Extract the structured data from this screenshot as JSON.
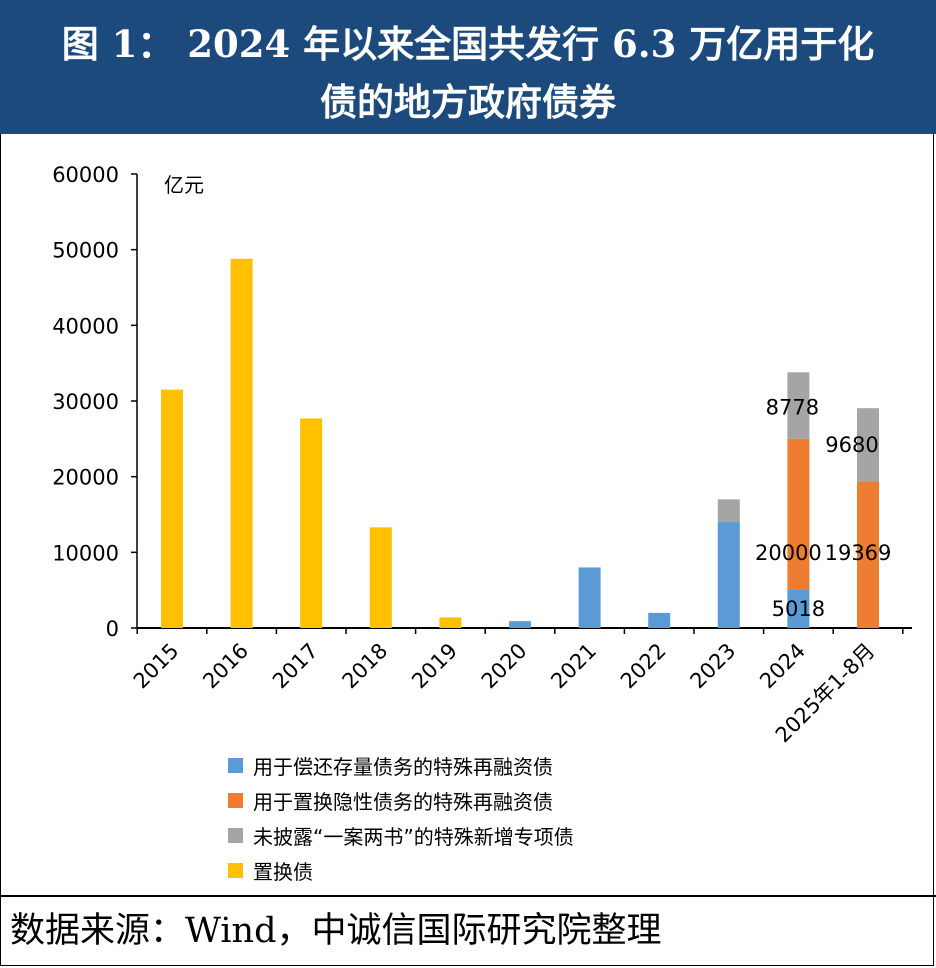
{
  "header": {
    "line1": "图 1： 2024 年以来全国共发行 6.3 万亿用于化",
    "line2": "债的地方政府债券"
  },
  "source": "数据来源：Wind，中诚信国际研究院整理",
  "colors": {
    "header_bg": "#1d4a7c",
    "blue": "#5b9bd5",
    "orange": "#ed7d31",
    "gray": "#a5a5a5",
    "yellow": "#ffc000"
  },
  "chart_data": {
    "type": "bar",
    "stacked": true,
    "unit_label": "亿元",
    "categories": [
      "2015",
      "2016",
      "2017",
      "2018",
      "2019",
      "2020",
      "2021",
      "2022",
      "2023",
      "2024",
      "2025年1-8月"
    ],
    "ylim": [
      0,
      60000
    ],
    "yticks": [
      0,
      10000,
      20000,
      30000,
      40000,
      50000,
      60000
    ],
    "series": [
      {
        "key": "repay",
        "name": "用于偿还存量债务的特殊再融资债",
        "color": "#5b9bd5",
        "values": [
          0,
          0,
          0,
          0,
          0,
          900,
          8000,
          2000,
          14000,
          5018,
          0
        ]
      },
      {
        "key": "swap_hidden",
        "name": "用于置换隐性债务的特殊再融资债",
        "color": "#ed7d31",
        "values": [
          0,
          0,
          0,
          0,
          0,
          0,
          0,
          0,
          0,
          20000,
          19369
        ]
      },
      {
        "key": "undisclosed",
        "name": "未披露“一案两书”的特殊新增专项债",
        "color": "#a5a5a5",
        "values": [
          0,
          0,
          0,
          0,
          0,
          0,
          0,
          0,
          3000,
          8778,
          9680
        ]
      },
      {
        "key": "swap",
        "name": "置换债",
        "color": "#ffc000",
        "values": [
          31500,
          48800,
          27700,
          13300,
          1400,
          0,
          0,
          0,
          0,
          0,
          0
        ]
      }
    ],
    "annotations": [
      {
        "category": "2024",
        "series": "undisclosed",
        "text": "8778"
      },
      {
        "category": "2025年1-8月",
        "series": "undisclosed",
        "text": "9680"
      },
      {
        "category": "2024",
        "series": "swap_hidden",
        "text": "20000"
      },
      {
        "category": "2025年1-8月",
        "series": "swap_hidden",
        "text": "19369"
      },
      {
        "category": "2024",
        "series": "repay",
        "text": "5018"
      }
    ],
    "legend_order": [
      "repay",
      "swap_hidden",
      "undisclosed",
      "swap"
    ]
  }
}
